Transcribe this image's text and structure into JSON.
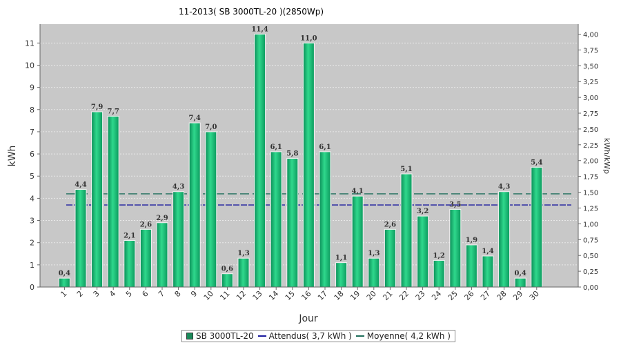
{
  "chart_data": {
    "type": "bar",
    "title": "11-2013( SB 3000TL-20 )(2850Wp)",
    "xlabel": "Jour",
    "ylabel": "kWh",
    "y2label": "kWh/kWp",
    "categories": [
      "1",
      "2",
      "3",
      "4",
      "5",
      "6",
      "7",
      "8",
      "9",
      "10",
      "11",
      "12",
      "13",
      "14",
      "15",
      "16",
      "17",
      "18",
      "19",
      "20",
      "21",
      "22",
      "23",
      "24",
      "25",
      "26",
      "27",
      "28",
      "29",
      "30"
    ],
    "series": [
      {
        "name": "SB 3000TL-20",
        "values": [
          0.4,
          4.4,
          7.9,
          7.7,
          2.1,
          2.6,
          2.9,
          4.3,
          7.4,
          7.0,
          0.6,
          1.3,
          11.4,
          6.1,
          5.8,
          11.0,
          6.1,
          1.1,
          4.1,
          1.3,
          2.6,
          5.1,
          3.2,
          1.2,
          3.5,
          1.9,
          1.4,
          4.3,
          0.4,
          5.4
        ],
        "labels": [
          "0,4",
          "4,4",
          "7,9",
          "7,7",
          "2,1",
          "2,6",
          "2,9",
          "4,3",
          "7,4",
          "7,0",
          "0,6",
          "1,3",
          "11,4",
          "6,1",
          "5,8",
          "11,0",
          "6,1",
          "1,1",
          "4,1",
          "1,3",
          "2,6",
          "5,1",
          "3,2",
          "1,2",
          "3,5",
          "1,9",
          "1,4",
          "4,3",
          "0,4",
          "5,4"
        ]
      }
    ],
    "reference_lines": [
      {
        "name": "Attendus( 3,7 kWh )",
        "value": 3.7,
        "color": "#1a1a9e"
      },
      {
        "name": "Moyenne( 4,2 kWh )",
        "value": 4.2,
        "color": "#1e6e5a"
      }
    ],
    "ylim": [
      0,
      11.85
    ],
    "yticks": [
      0,
      1,
      2,
      3,
      4,
      5,
      6,
      7,
      8,
      9,
      10,
      11
    ],
    "y2lim": [
      0,
      4.158
    ],
    "y2ticks": [
      "0,00",
      "0,25",
      "0,50",
      "0,75",
      "1,00",
      "1,25",
      "1,50",
      "1,75",
      "2,00",
      "2,25",
      "2,50",
      "2,75",
      "3,00",
      "3,25",
      "3,50",
      "3,75",
      "4,00"
    ],
    "colors": {
      "bar": "#1ec07a",
      "bar_dark": "#0a8a55",
      "plot_bg": "#c8c8c8",
      "grid": "#e8e8e8"
    },
    "legend_position": "bottom",
    "grid": true
  }
}
